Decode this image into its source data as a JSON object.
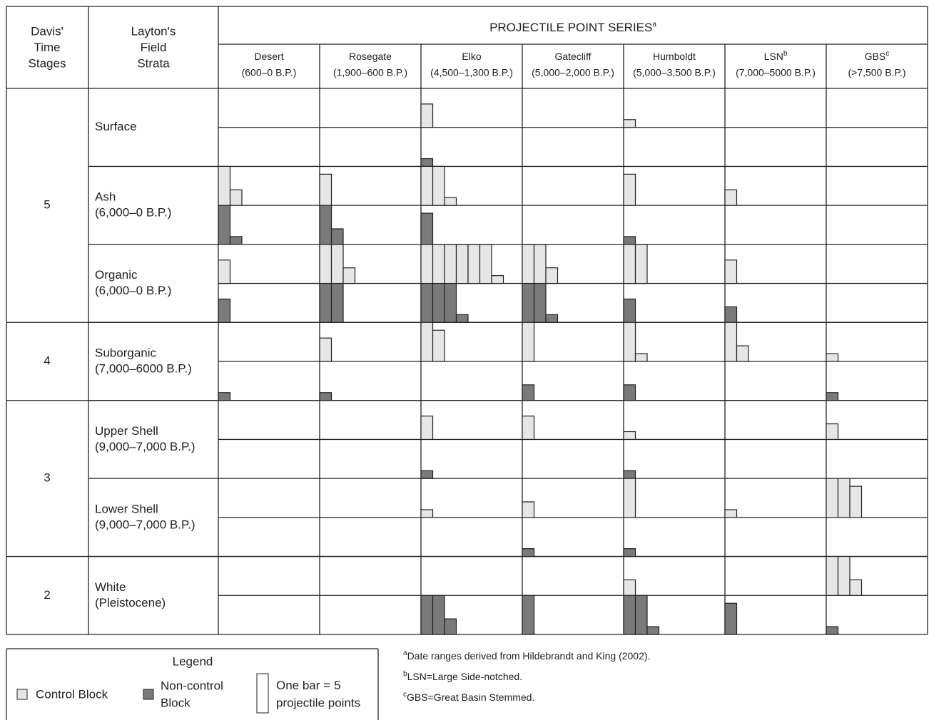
{
  "stage_header": [
    "Davis'",
    "Time",
    "Stages"
  ],
  "strata_header": [
    "Layton's",
    "Field",
    "Strata"
  ],
  "series_header": {
    "title": "PROJECTILE POINT SERIES",
    "note": "a"
  },
  "series": [
    {
      "name": "Desert",
      "range": "(600–0 B.P.)"
    },
    {
      "name": "Rosegate",
      "range": "(1,900–600 B.P.)"
    },
    {
      "name": "Elko",
      "range": "(4,500–1,300 B.P.)"
    },
    {
      "name": "Gatecliff",
      "range": "(5,000–2,000 B.P.)"
    },
    {
      "name": "Humboldt",
      "range": "(5,000–3,500 B.P.)"
    },
    {
      "name": "LSN",
      "note": "b",
      "range": "(7,000–5000 B.P.)"
    },
    {
      "name": "GBS",
      "note": "c",
      "range": "(>7,500 B.P.)"
    }
  ],
  "stages": [
    {
      "label": "5",
      "strata": [
        {
          "name": [
            "Surface"
          ],
          "control": [
            0,
            0,
            3,
            0,
            1,
            0,
            0
          ],
          "noncontrol": [
            0,
            0,
            1,
            0,
            0,
            0,
            0
          ]
        },
        {
          "name": [
            "Ash",
            "(6,000–0 B.P.)"
          ],
          "control": [
            7,
            4,
            11,
            0,
            4,
            2,
            0
          ],
          "noncontrol": [
            6,
            7,
            4,
            0,
            1,
            0,
            0
          ]
        },
        {
          "name": [
            "Organic",
            "(6,000–0 B.P.)"
          ],
          "control": [
            3,
            12,
            31,
            12,
            10,
            3,
            0
          ],
          "noncontrol": [
            3,
            10,
            16,
            11,
            3,
            2,
            0
          ]
        }
      ]
    },
    {
      "label": "4",
      "strata": [
        {
          "name": [
            "Suborganic",
            "(7,000–6000 B.P.)"
          ],
          "control": [
            0,
            3,
            9,
            5,
            6,
            7,
            1
          ],
          "noncontrol": [
            1,
            1,
            0,
            2,
            2,
            0,
            1
          ]
        }
      ]
    },
    {
      "label": "3",
      "strata": [
        {
          "name": [
            "Upper Shell",
            "(9,000–7,000 B.P.)"
          ],
          "control": [
            0,
            0,
            3,
            3,
            1,
            0,
            2
          ],
          "noncontrol": [
            0,
            0,
            1,
            0,
            1,
            0,
            0
          ]
        },
        {
          "name": [
            "Lower Shell",
            "(9,000–7,000 B.P.)"
          ],
          "control": [
            0,
            0,
            1,
            2,
            5,
            1,
            14
          ],
          "noncontrol": [
            0,
            0,
            0,
            1,
            1,
            0,
            0
          ]
        }
      ]
    },
    {
      "label": "2",
      "strata": [
        {
          "name": [
            "White",
            "(Pleistocene)"
          ],
          "control": [
            0,
            0,
            0,
            0,
            2,
            0,
            12
          ],
          "noncontrol": [
            0,
            0,
            12,
            5,
            11,
            4,
            1
          ]
        }
      ]
    }
  ],
  "legend": {
    "title": "Legend",
    "control": "Control Block",
    "noncontrol": [
      "Non-control",
      "Block"
    ],
    "bar_before": "One bar =",
    "points_per_bar": 5,
    "bar_after": "projectile points"
  },
  "footnotes": [
    {
      "mark": "a",
      "text": "Date ranges derived from Hildebrandt and King (2002)."
    },
    {
      "mark": "b",
      "text": "LSN=Large Side-notched."
    },
    {
      "mark": "c",
      "text": "GBS=Great Basin Stemmed."
    }
  ]
}
